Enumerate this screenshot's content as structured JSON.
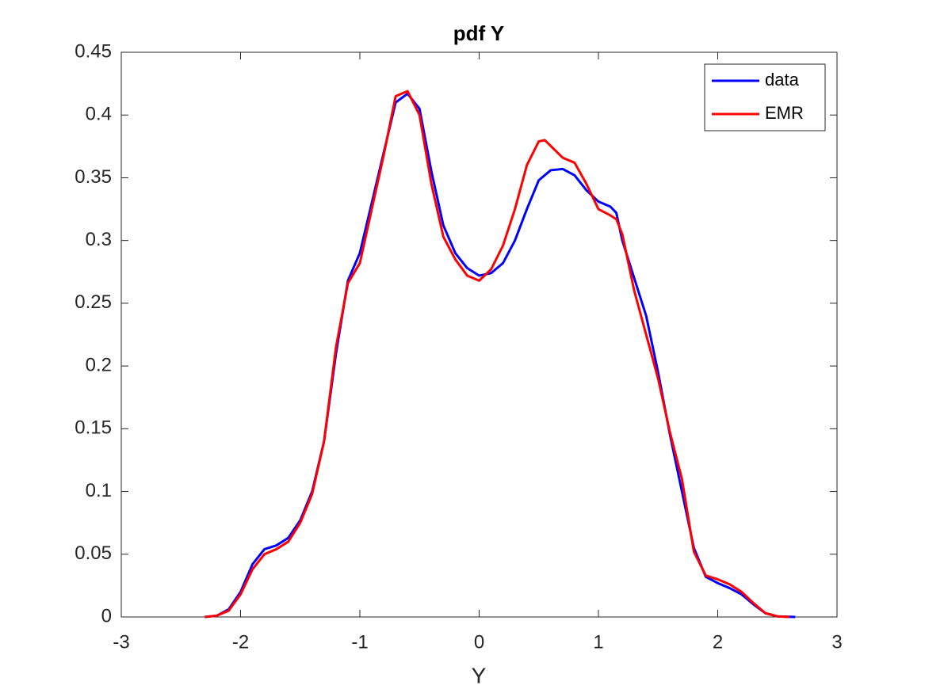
{
  "chart_data": {
    "type": "line",
    "title": "pdf Y",
    "x_label": "Y",
    "xlim": [
      -3,
      3
    ],
    "xticks": [
      -3,
      -2,
      -1,
      0,
      1,
      2,
      3
    ],
    "ylim": [
      0,
      0.45
    ],
    "yticks": [
      0,
      0.05,
      0.1,
      0.15,
      0.2,
      0.25,
      0.3,
      0.35,
      0.4,
      0.45
    ],
    "grid": false,
    "legend_position": "top-right",
    "series": [
      {
        "name": "data",
        "color": "#0000ff",
        "x": [
          -2.3,
          -2.2,
          -2.1,
          -2.0,
          -1.9,
          -1.8,
          -1.7,
          -1.6,
          -1.5,
          -1.4,
          -1.3,
          -1.2,
          -1.1,
          -1.0,
          -0.9,
          -0.8,
          -0.7,
          -0.6,
          -0.5,
          -0.4,
          -0.3,
          -0.2,
          -0.1,
          0.0,
          0.1,
          0.2,
          0.3,
          0.4,
          0.5,
          0.6,
          0.7,
          0.8,
          0.9,
          1.0,
          1.1,
          1.15,
          1.2,
          1.3,
          1.4,
          1.5,
          1.6,
          1.7,
          1.8,
          1.9,
          2.0,
          2.1,
          2.2,
          2.3,
          2.4,
          2.5,
          2.65
        ],
        "values": [
          0,
          0.001,
          0.006,
          0.02,
          0.042,
          0.054,
          0.057,
          0.063,
          0.077,
          0.1,
          0.14,
          0.21,
          0.268,
          0.29,
          0.33,
          0.37,
          0.41,
          0.417,
          0.405,
          0.355,
          0.312,
          0.29,
          0.278,
          0.272,
          0.274,
          0.282,
          0.3,
          0.325,
          0.348,
          0.356,
          0.357,
          0.352,
          0.34,
          0.331,
          0.327,
          0.322,
          0.3,
          0.27,
          0.24,
          0.195,
          0.145,
          0.1,
          0.055,
          0.032,
          0.027,
          0.023,
          0.018,
          0.01,
          0.003,
          0.0005,
          0
        ]
      },
      {
        "name": "EMR",
        "color": "#ff0000",
        "x": [
          -2.3,
          -2.2,
          -2.1,
          -2.0,
          -1.9,
          -1.8,
          -1.7,
          -1.6,
          -1.5,
          -1.4,
          -1.3,
          -1.2,
          -1.1,
          -1.0,
          -0.9,
          -0.8,
          -0.7,
          -0.6,
          -0.5,
          -0.4,
          -0.3,
          -0.2,
          -0.1,
          0.0,
          0.1,
          0.2,
          0.3,
          0.4,
          0.5,
          0.55,
          0.7,
          0.8,
          0.9,
          1.0,
          1.1,
          1.15,
          1.2,
          1.3,
          1.4,
          1.5,
          1.6,
          1.7,
          1.8,
          1.9,
          2.0,
          2.1,
          2.2,
          2.3,
          2.4,
          2.5,
          2.6
        ],
        "values": [
          0,
          0.001,
          0.005,
          0.018,
          0.038,
          0.05,
          0.054,
          0.06,
          0.075,
          0.098,
          0.14,
          0.215,
          0.266,
          0.282,
          0.325,
          0.368,
          0.415,
          0.419,
          0.4,
          0.345,
          0.303,
          0.285,
          0.272,
          0.268,
          0.277,
          0.296,
          0.325,
          0.36,
          0.379,
          0.38,
          0.366,
          0.362,
          0.345,
          0.325,
          0.32,
          0.317,
          0.305,
          0.26,
          0.225,
          0.19,
          0.147,
          0.11,
          0.052,
          0.033,
          0.03,
          0.026,
          0.02,
          0.011,
          0.003,
          0.0005,
          0
        ]
      }
    ]
  }
}
